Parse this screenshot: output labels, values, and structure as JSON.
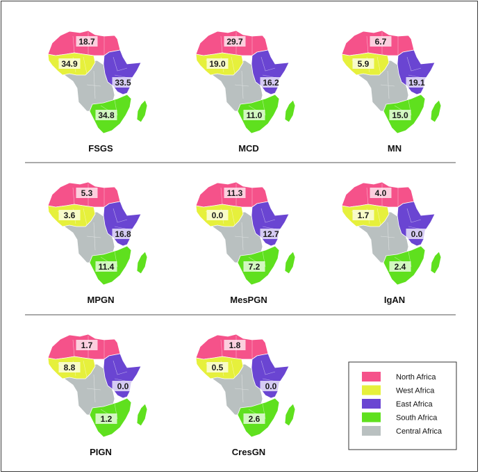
{
  "colors": {
    "north": "#f5528a",
    "west": "#e6f03c",
    "east": "#6a45d2",
    "south": "#5fe01e",
    "central": "#b9c0c0",
    "madagascar": "#5fe01e"
  },
  "legend": [
    {
      "key": "north",
      "label": "North Africa"
    },
    {
      "key": "west",
      "label": "West Africa"
    },
    {
      "key": "east",
      "label": "East Africa"
    },
    {
      "key": "south",
      "label": "South Africa"
    },
    {
      "key": "central",
      "label": "Central Africa"
    }
  ],
  "maps": [
    {
      "title": "FSGS",
      "values": {
        "north": "18.7",
        "west": "34.9",
        "east": "33.5",
        "south": "34.8"
      }
    },
    {
      "title": "MCD",
      "values": {
        "north": "29.7",
        "west": "19.0",
        "east": "16.2",
        "south": "11.0"
      }
    },
    {
      "title": "MN",
      "values": {
        "north": "6.7",
        "west": "5.9",
        "east": "19.1",
        "south": "15.0"
      }
    },
    {
      "title": "MPGN",
      "values": {
        "north": "5.3",
        "west": "3.6",
        "east": "16.8",
        "south": "11.4"
      }
    },
    {
      "title": "MesPGN",
      "values": {
        "north": "11.3",
        "west": "0.0",
        "east": "12.7",
        "south": "7.2"
      }
    },
    {
      "title": "IgAN",
      "values": {
        "north": "4.0",
        "west": "1.7",
        "east": "0.0",
        "south": "2.4"
      }
    },
    {
      "title": "PIGN",
      "values": {
        "north": "1.7",
        "west": "8.8",
        "east": "0.0",
        "south": "1.2"
      }
    },
    {
      "title": "CresGN",
      "values": {
        "north": "1.8",
        "west": "0.5",
        "east": "0.0",
        "south": "2.6"
      }
    }
  ]
}
